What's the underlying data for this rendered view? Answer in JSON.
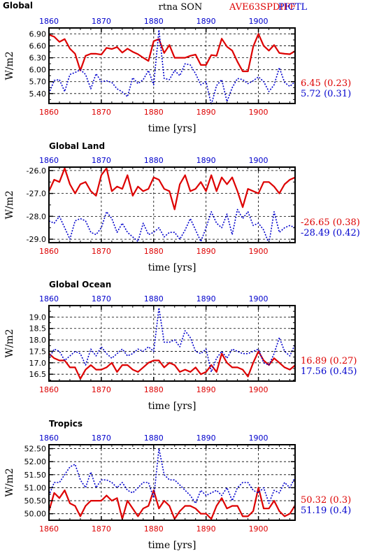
{
  "header": {
    "center_title": "rtna SON",
    "run_a": "AVE63SPDIFF",
    "run_b": "PICTL",
    "color_a": "#dd0000",
    "color_b": "#0000cc"
  },
  "chart_data": [
    {
      "type": "line",
      "title": "Global",
      "xlabel": "time [yrs]",
      "ylabel": "W/m2",
      "xlim": [
        1860,
        1907
      ],
      "ylim": [
        5.15,
        7.05
      ],
      "yticks": [
        5.4,
        5.7,
        6.0,
        6.3,
        6.6,
        6.9
      ],
      "ytick_labels": [
        "5.40",
        "5.70",
        "6.00",
        "6.30",
        "6.60",
        "6.90"
      ],
      "xticks": [
        1860,
        1870,
        1880,
        1890,
        1900
      ],
      "xtick_labels": [
        "1860",
        "1870",
        "1880",
        "1890",
        "1900"
      ],
      "grid": true,
      "x": [
        1860,
        1861,
        1862,
        1863,
        1864,
        1865,
        1866,
        1867,
        1868,
        1869,
        1870,
        1871,
        1872,
        1873,
        1874,
        1875,
        1876,
        1877,
        1878,
        1879,
        1880,
        1881,
        1882,
        1883,
        1884,
        1885,
        1886,
        1887,
        1888,
        1889,
        1890,
        1891,
        1892,
        1893,
        1894,
        1895,
        1896,
        1897,
        1898,
        1899,
        1900,
        1901,
        1902,
        1903,
        1904,
        1905,
        1906,
        1907
      ],
      "series": [
        {
          "name": "AVE63SPDIFF",
          "color": "#dd0000",
          "style": "solid",
          "values": [
            6.88,
            6.83,
            6.7,
            6.77,
            6.53,
            6.4,
            5.98,
            6.35,
            6.4,
            6.4,
            6.38,
            6.55,
            6.52,
            6.57,
            6.43,
            6.53,
            6.45,
            6.39,
            6.3,
            6.22,
            6.72,
            6.77,
            6.42,
            6.62,
            6.3,
            6.3,
            6.3,
            6.35,
            6.38,
            6.12,
            6.12,
            6.37,
            6.35,
            6.78,
            6.58,
            6.48,
            6.2,
            5.96,
            5.96,
            6.58,
            6.9,
            6.6,
            6.48,
            6.62,
            6.42,
            6.4,
            6.39,
            6.47
          ]
        },
        {
          "name": "PICTL",
          "color": "#0000cc",
          "style": "dotted",
          "values": [
            5.4,
            5.73,
            5.75,
            5.45,
            5.88,
            5.93,
            6.0,
            5.88,
            5.52,
            5.9,
            5.7,
            5.72,
            5.68,
            5.52,
            5.44,
            5.32,
            5.8,
            5.65,
            5.75,
            5.98,
            5.62,
            7.0,
            5.78,
            5.75,
            5.98,
            5.85,
            6.15,
            6.12,
            5.9,
            5.62,
            5.7,
            5.12,
            5.6,
            5.75,
            5.2,
            5.55,
            5.78,
            5.75,
            5.65,
            5.72,
            5.82,
            5.7,
            5.45,
            5.62,
            6.05,
            5.68,
            5.58,
            5.7
          ]
        }
      ],
      "right_labels": [
        {
          "text": "6.45 (0.23)",
          "color": "#dd0000"
        },
        {
          "text": "5.72 (0.31)",
          "color": "#0000cc"
        }
      ]
    },
    {
      "type": "line",
      "title": "Global Land",
      "xlabel": "time [yrs]",
      "ylabel": "W/m2",
      "xlim": [
        1860,
        1907
      ],
      "ylim": [
        -29.15,
        -25.85
      ],
      "yticks": [
        -29.0,
        -28.0,
        -27.0,
        -26.0
      ],
      "ytick_labels": [
        "-29.0",
        "-28.0",
        "-27.0",
        "-26.0"
      ],
      "xticks": [
        1860,
        1870,
        1880,
        1890,
        1900
      ],
      "xtick_labels": [
        "1860",
        "1870",
        "1880",
        "1890",
        "1900"
      ],
      "grid": true,
      "x": [
        1860,
        1861,
        1862,
        1863,
        1864,
        1865,
        1866,
        1867,
        1868,
        1869,
        1870,
        1871,
        1872,
        1873,
        1874,
        1875,
        1876,
        1877,
        1878,
        1879,
        1880,
        1881,
        1882,
        1883,
        1884,
        1885,
        1886,
        1887,
        1888,
        1889,
        1890,
        1891,
        1892,
        1893,
        1894,
        1895,
        1896,
        1897,
        1898,
        1899,
        1900,
        1901,
        1902,
        1903,
        1904,
        1905,
        1906,
        1907
      ],
      "series": [
        {
          "name": "AVE63SPDIFF",
          "color": "#dd0000",
          "style": "solid",
          "values": [
            -26.9,
            -26.4,
            -26.5,
            -25.9,
            -26.6,
            -27.0,
            -26.6,
            -26.5,
            -26.9,
            -27.1,
            -26.2,
            -25.9,
            -26.9,
            -26.7,
            -26.8,
            -26.2,
            -27.1,
            -26.7,
            -26.9,
            -26.8,
            -26.3,
            -26.4,
            -26.8,
            -26.9,
            -27.7,
            -26.6,
            -26.2,
            -26.9,
            -26.8,
            -26.5,
            -26.9,
            -26.2,
            -26.9,
            -26.3,
            -26.6,
            -26.3,
            -26.9,
            -27.6,
            -26.8,
            -26.9,
            -27.0,
            -26.5,
            -26.5,
            -26.7,
            -27.0,
            -26.6,
            -26.4,
            -26.3
          ]
        },
        {
          "name": "PICTL",
          "color": "#0000cc",
          "style": "dotted",
          "values": [
            -28.2,
            -28.3,
            -28.0,
            -28.5,
            -29.0,
            -28.2,
            -28.1,
            -28.2,
            -28.7,
            -28.8,
            -28.5,
            -27.8,
            -28.1,
            -28.7,
            -28.3,
            -28.7,
            -28.9,
            -29.1,
            -28.3,
            -28.8,
            -28.7,
            -28.5,
            -28.9,
            -28.7,
            -28.7,
            -29.0,
            -28.6,
            -28.1,
            -28.6,
            -29.1,
            -28.5,
            -27.8,
            -28.3,
            -28.5,
            -27.9,
            -28.8,
            -27.7,
            -28.1,
            -27.8,
            -28.4,
            -28.3,
            -28.6,
            -29.2,
            -27.8,
            -28.7,
            -28.5,
            -28.4,
            -28.49
          ]
        }
      ],
      "right_labels": [
        {
          "text": "-26.65 (0.38)",
          "color": "#dd0000"
        },
        {
          "text": "-28.49 (0.42)",
          "color": "#0000cc"
        }
      ]
    },
    {
      "type": "line",
      "title": "Global Ocean",
      "xlabel": "time [yrs]",
      "ylabel": "W/m2",
      "xlim": [
        1860,
        1907
      ],
      "ylim": [
        16.2,
        19.5
      ],
      "yticks": [
        16.5,
        17.0,
        17.5,
        18.0,
        18.5,
        19.0
      ],
      "ytick_labels": [
        "16.5",
        "17.0",
        "17.5",
        "18.0",
        "18.5",
        "19.0"
      ],
      "xticks": [
        1860,
        1870,
        1880,
        1890,
        1900
      ],
      "xtick_labels": [
        "1860",
        "1870",
        "1880",
        "1890",
        "1900"
      ],
      "grid": true,
      "x": [
        1860,
        1861,
        1862,
        1863,
        1864,
        1865,
        1866,
        1867,
        1868,
        1869,
        1870,
        1871,
        1872,
        1873,
        1874,
        1875,
        1876,
        1877,
        1878,
        1879,
        1880,
        1881,
        1882,
        1883,
        1884,
        1885,
        1886,
        1887,
        1888,
        1889,
        1890,
        1891,
        1892,
        1893,
        1894,
        1895,
        1896,
        1897,
        1898,
        1899,
        1900,
        1901,
        1902,
        1903,
        1904,
        1905,
        1906,
        1907
      ],
      "series": [
        {
          "name": "AVE63SPDIFF",
          "color": "#dd0000",
          "style": "solid",
          "values": [
            17.4,
            17.2,
            17.1,
            17.1,
            16.8,
            16.8,
            16.3,
            16.7,
            16.9,
            16.7,
            16.7,
            16.8,
            17.0,
            16.6,
            16.9,
            16.9,
            16.7,
            16.6,
            16.8,
            17.0,
            17.1,
            17.1,
            16.8,
            17.0,
            16.9,
            16.6,
            16.7,
            16.6,
            16.8,
            16.5,
            16.6,
            16.9,
            16.6,
            17.4,
            17.0,
            16.8,
            16.8,
            16.7,
            16.4,
            17.0,
            17.5,
            17.1,
            16.9,
            17.2,
            17.0,
            16.8,
            16.7,
            16.89
          ]
        },
        {
          "name": "PICTL",
          "color": "#0000cc",
          "style": "dotted",
          "values": [
            17.2,
            17.6,
            17.5,
            17.1,
            17.3,
            17.5,
            17.4,
            16.9,
            17.6,
            17.3,
            17.7,
            17.4,
            17.2,
            17.4,
            17.6,
            17.3,
            17.4,
            17.6,
            17.5,
            17.7,
            17.5,
            19.4,
            17.9,
            17.9,
            18.0,
            17.7,
            18.4,
            18.1,
            17.5,
            17.4,
            17.6,
            16.6,
            17.2,
            17.5,
            17.2,
            17.6,
            17.5,
            17.4,
            17.4,
            17.5,
            17.6,
            17.0,
            16.9,
            17.4,
            18.1,
            17.5,
            17.3,
            17.8
          ]
        }
      ],
      "right_labels": [
        {
          "text": "16.89 (0.27)",
          "color": "#dd0000"
        },
        {
          "text": "17.56 (0.45)",
          "color": "#0000cc"
        }
      ]
    },
    {
      "type": "line",
      "title": "Tropics",
      "xlabel": "time [yrs]",
      "ylabel": "W/m2",
      "xlim": [
        1860,
        1907
      ],
      "ylim": [
        49.75,
        52.65
      ],
      "yticks": [
        50.0,
        50.5,
        51.0,
        51.5,
        52.0,
        52.5
      ],
      "ytick_labels": [
        "50.00",
        "50.50",
        "51.00",
        "51.50",
        "52.00",
        "52.50"
      ],
      "xticks": [
        1860,
        1870,
        1880,
        1890,
        1900
      ],
      "xtick_labels": [
        "1860",
        "1870",
        "1880",
        "1890",
        "1900"
      ],
      "grid": true,
      "x": [
        1860,
        1861,
        1862,
        1863,
        1864,
        1865,
        1866,
        1867,
        1868,
        1869,
        1870,
        1871,
        1872,
        1873,
        1874,
        1875,
        1876,
        1877,
        1878,
        1879,
        1880,
        1881,
        1882,
        1883,
        1884,
        1885,
        1886,
        1887,
        1888,
        1889,
        1890,
        1891,
        1892,
        1893,
        1894,
        1895,
        1896,
        1897,
        1898,
        1899,
        1900,
        1901,
        1902,
        1903,
        1904,
        1905,
        1906,
        1907
      ],
      "series": [
        {
          "name": "AVE63SPDIFF",
          "color": "#dd0000",
          "style": "solid",
          "values": [
            50.1,
            50.8,
            50.6,
            50.9,
            50.4,
            50.3,
            49.9,
            50.3,
            50.5,
            50.5,
            50.5,
            50.7,
            50.5,
            50.6,
            49.8,
            50.5,
            50.2,
            49.9,
            50.2,
            50.3,
            50.9,
            50.2,
            50.5,
            50.3,
            49.8,
            50.1,
            50.3,
            50.3,
            50.2,
            50.0,
            50.0,
            49.8,
            50.3,
            50.6,
            50.2,
            50.3,
            50.3,
            49.9,
            49.9,
            50.1,
            51.0,
            50.2,
            50.2,
            50.5,
            50.1,
            49.9,
            50.0,
            50.32
          ]
        },
        {
          "name": "PICTL",
          "color": "#0000cc",
          "style": "dotted",
          "values": [
            50.7,
            51.2,
            51.2,
            51.5,
            51.8,
            51.9,
            51.3,
            51.0,
            51.6,
            51.0,
            51.3,
            51.3,
            51.2,
            51.0,
            51.2,
            50.9,
            50.8,
            51.0,
            51.2,
            51.2,
            50.6,
            52.5,
            51.5,
            51.3,
            51.3,
            51.1,
            50.9,
            50.7,
            50.4,
            50.9,
            50.7,
            50.8,
            50.9,
            50.7,
            51.0,
            50.5,
            51.0,
            51.2,
            51.2,
            50.9,
            50.8,
            51.0,
            50.4,
            50.9,
            50.8,
            51.2,
            51.0,
            51.4
          ]
        }
      ],
      "right_labels": [
        {
          "text": "50.32 (0.3)",
          "color": "#dd0000"
        },
        {
          "text": "51.19 (0.4)",
          "color": "#0000cc"
        }
      ]
    }
  ]
}
